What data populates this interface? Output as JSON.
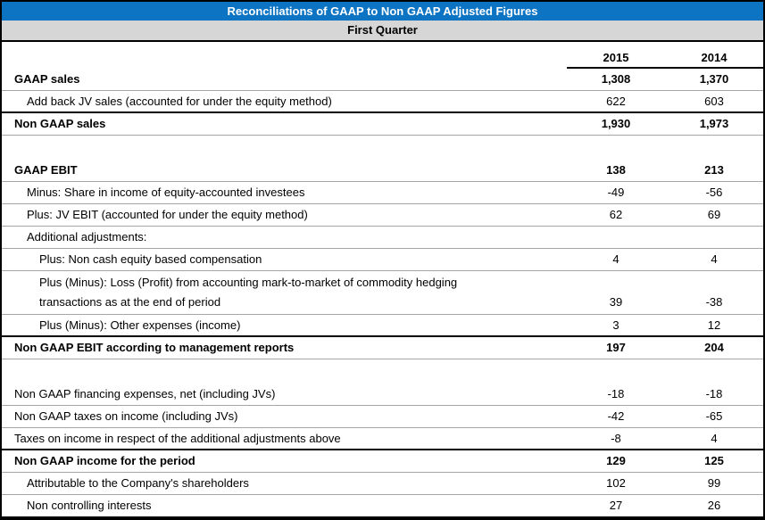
{
  "header": {
    "title": "Reconciliations of GAAP to Non GAAP Adjusted Figures",
    "subtitle": "First Quarter"
  },
  "colors": {
    "header_blue": "#0D74C4",
    "subheader_gray": "#D6D6D6",
    "row_line": "#A6A6A6",
    "dark_line": "#000000"
  },
  "table": {
    "columns": [
      "2015",
      "2014"
    ],
    "rows": [
      {
        "label": "GAAP sales",
        "values": [
          "1,308",
          "1,370"
        ],
        "bold": true,
        "indent": 0,
        "border": "thin"
      },
      {
        "label": "Add back JV sales (accounted for under the equity method)",
        "values": [
          "622",
          "603"
        ],
        "bold": false,
        "indent": 1,
        "border": "dark"
      },
      {
        "label": "Non GAAP sales",
        "values": [
          "1,930",
          "1,973"
        ],
        "bold": true,
        "indent": 0,
        "border": "thin"
      },
      {
        "spacer": true
      },
      {
        "label": "GAAP EBIT",
        "values": [
          "138",
          "213"
        ],
        "bold": true,
        "indent": 0,
        "border": "thin"
      },
      {
        "label": "Minus: Share in income of equity-accounted investees",
        "values": [
          "-49",
          "-56"
        ],
        "bold": false,
        "indent": 1,
        "border": "thin"
      },
      {
        "label": "Plus: JV EBIT (accounted for under the equity method)",
        "values": [
          "62",
          "69"
        ],
        "bold": false,
        "indent": 1,
        "border": "thin"
      },
      {
        "label": "Additional adjustments:",
        "values": [
          "",
          ""
        ],
        "bold": false,
        "indent": 1,
        "border": "thin"
      },
      {
        "label": "Plus: Non cash equity based compensation",
        "values": [
          "4",
          "4"
        ],
        "bold": false,
        "indent": 2,
        "border": "thin"
      },
      {
        "label": "Plus (Minus): Loss (Profit) from accounting mark-to-market of commodity hedging",
        "label2": "transactions as at the end of period",
        "values": [
          "39",
          "-38"
        ],
        "bold": false,
        "indent": 2,
        "border": "thin",
        "twoline": true
      },
      {
        "label": "Plus (Minus): Other expenses (income)",
        "values": [
          "3",
          "12"
        ],
        "bold": false,
        "indent": 2,
        "border": "dark"
      },
      {
        "label": "Non GAAP EBIT according to management reports",
        "values": [
          "197",
          "204"
        ],
        "bold": true,
        "indent": 0,
        "border": "thin"
      },
      {
        "spacer": true
      },
      {
        "label": "Non GAAP financing expenses, net (including JVs)",
        "values": [
          "-18",
          "-18"
        ],
        "bold": false,
        "indent": 0,
        "border": "thin"
      },
      {
        "label": "Non GAAP taxes on income (including JVs)",
        "values": [
          "-42",
          "-65"
        ],
        "bold": false,
        "indent": 0,
        "border": "thin"
      },
      {
        "label": "Taxes on income in respect of the additional adjustments above",
        "values": [
          "-8",
          "4"
        ],
        "bold": false,
        "indent": 0,
        "border": "dark"
      },
      {
        "label": "Non GAAP income for the period",
        "values": [
          "129",
          "125"
        ],
        "bold": true,
        "indent": 0,
        "border": "thin"
      },
      {
        "label": "Attributable to the Company's shareholders",
        "values": [
          "102",
          "99"
        ],
        "bold": false,
        "indent": 1,
        "border": "thin"
      },
      {
        "label": "Non controlling interests",
        "values": [
          "27",
          "26"
        ],
        "bold": false,
        "indent": 1,
        "border": "none"
      }
    ]
  }
}
